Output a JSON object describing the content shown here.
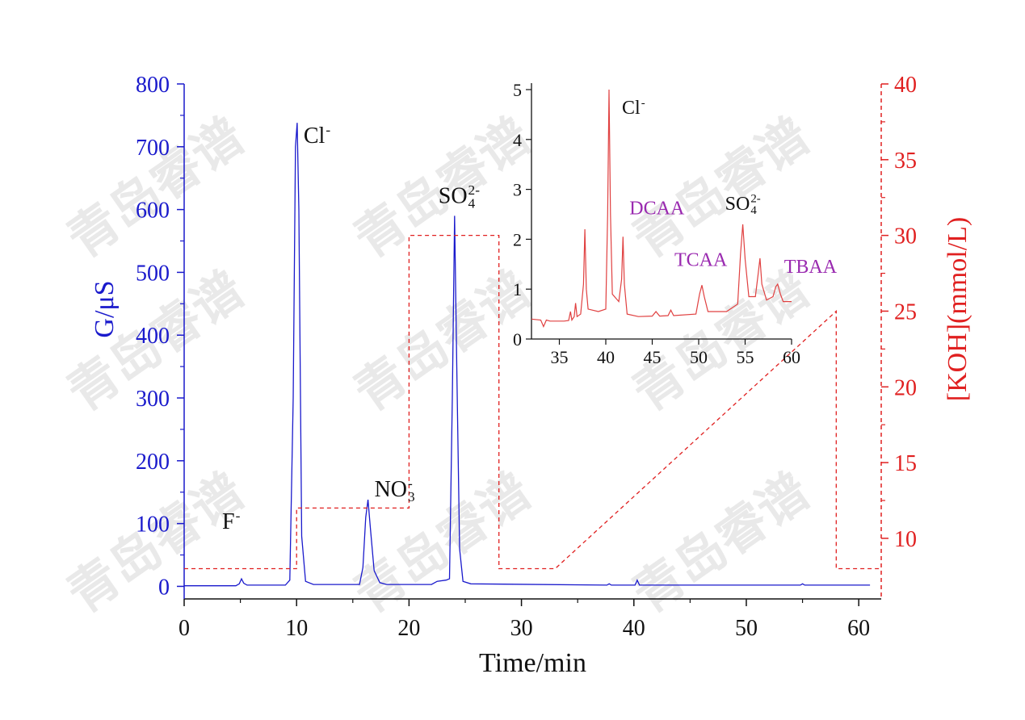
{
  "chart_data": [
    {
      "type": "line",
      "xlabel": "Time/min",
      "ylabel_left": "G/μS",
      "ylabel_right": "[KOH](mmol/L)",
      "xlim": [
        0,
        62
      ],
      "ylim_left": [
        -20,
        800
      ],
      "ylim_right": [
        6,
        40
      ],
      "x_ticks": [
        0,
        10,
        20,
        30,
        40,
        50,
        60
      ],
      "y_left_ticks": [
        0,
        100,
        200,
        300,
        400,
        500,
        600,
        700,
        800
      ],
      "y_right_ticks": [
        10,
        15,
        20,
        25,
        30,
        35,
        40
      ],
      "colors": {
        "conductivity": "#1a1acc",
        "koh": "#e02020",
        "inset": "#e04040",
        "inset_label": "#9a2ab0"
      },
      "series": [
        {
          "axis": "left",
          "style": "solid",
          "points": [
            [
              0,
              1
            ],
            [
              4.6,
              1
            ],
            [
              4.9,
              4
            ],
            [
              5.1,
              12
            ],
            [
              5.3,
              5
            ],
            [
              5.6,
              2
            ],
            [
              9,
              2
            ],
            [
              9.4,
              10
            ],
            [
              9.7,
              300
            ],
            [
              9.9,
              700
            ],
            [
              10.05,
              738
            ],
            [
              10.2,
              600
            ],
            [
              10.45,
              80
            ],
            [
              10.8,
              8
            ],
            [
              11.5,
              3
            ],
            [
              15.6,
              3
            ],
            [
              15.9,
              30
            ],
            [
              16.15,
              110
            ],
            [
              16.35,
              138
            ],
            [
              16.55,
              95
            ],
            [
              16.9,
              25
            ],
            [
              17.4,
              6
            ],
            [
              18,
              3
            ],
            [
              22,
              3
            ],
            [
              22.5,
              8
            ],
            [
              23.3,
              10
            ],
            [
              23.6,
              12
            ],
            [
              23.85,
              300
            ],
            [
              24.05,
              590
            ],
            [
              24.25,
              350
            ],
            [
              24.5,
              60
            ],
            [
              24.8,
              8
            ],
            [
              25.5,
              4
            ],
            [
              37.6,
              2
            ],
            [
              37.8,
              4
            ],
            [
              38,
              2
            ],
            [
              40.1,
              2
            ],
            [
              40.3,
              10
            ],
            [
              40.5,
              2
            ],
            [
              54.8,
              2
            ],
            [
              55,
              4
            ],
            [
              55.2,
              2
            ],
            [
              61,
              2
            ]
          ]
        },
        {
          "axis": "right",
          "style": "dashed",
          "points": [
            [
              0,
              8
            ],
            [
              10,
              8
            ],
            [
              10,
              12
            ],
            [
              20,
              12
            ],
            [
              20,
              30
            ],
            [
              28,
              30
            ],
            [
              28,
              8
            ],
            [
              33,
              8
            ],
            [
              58,
              25
            ],
            [
              58,
              8
            ],
            [
              62,
              8
            ]
          ]
        }
      ],
      "annotations": [
        {
          "text": "F",
          "sup": "-",
          "sub": "",
          "x": 5.1,
          "y": 12
        },
        {
          "text": "Cl",
          "sup": "-",
          "sub": "",
          "x": 10.05,
          "y": 738
        },
        {
          "text": "NO",
          "sup": "-",
          "sub": "3",
          "x": 16.35,
          "y": 138
        },
        {
          "text": "SO",
          "sup": "2-",
          "sub": "4",
          "x": 24.05,
          "y": 590
        }
      ]
    },
    {
      "type": "line",
      "title": "",
      "xlim": [
        32,
        60
      ],
      "ylim": [
        0,
        5
      ],
      "x_ticks": [
        35,
        40,
        45,
        50,
        55,
        60
      ],
      "y_ticks": [
        0,
        1,
        2,
        3,
        4,
        5
      ],
      "series": [
        {
          "points": [
            [
              32,
              0.4
            ],
            [
              33,
              0.38
            ],
            [
              33.3,
              0.25
            ],
            [
              33.6,
              0.38
            ],
            [
              34,
              0.36
            ],
            [
              35.5,
              0.36
            ],
            [
              36,
              0.37
            ],
            [
              36.2,
              0.55
            ],
            [
              36.35,
              0.38
            ],
            [
              36.6,
              0.45
            ],
            [
              36.75,
              0.72
            ],
            [
              36.9,
              0.45
            ],
            [
              37.3,
              0.5
            ],
            [
              37.6,
              1.1
            ],
            [
              37.75,
              2.2
            ],
            [
              37.9,
              1.0
            ],
            [
              38.1,
              0.6
            ],
            [
              39.2,
              0.55
            ],
            [
              40,
              0.6
            ],
            [
              40.2,
              2.5
            ],
            [
              40.35,
              5.0
            ],
            [
              40.5,
              2.5
            ],
            [
              40.7,
              0.9
            ],
            [
              41.4,
              0.75
            ],
            [
              41.7,
              1.2
            ],
            [
              41.85,
              2.05
            ],
            [
              42,
              1.1
            ],
            [
              42.3,
              0.5
            ],
            [
              43.5,
              0.45
            ],
            [
              45,
              0.46
            ],
            [
              45.4,
              0.55
            ],
            [
              45.8,
              0.46
            ],
            [
              46.7,
              0.47
            ],
            [
              47,
              0.58
            ],
            [
              47.3,
              0.47
            ],
            [
              49.7,
              0.5
            ],
            [
              50.1,
              0.9
            ],
            [
              50.35,
              1.08
            ],
            [
              50.6,
              0.85
            ],
            [
              51,
              0.55
            ],
            [
              53,
              0.55
            ],
            [
              54.2,
              0.7
            ],
            [
              54.5,
              1.7
            ],
            [
              54.75,
              2.3
            ],
            [
              55,
              1.6
            ],
            [
              55.4,
              0.85
            ],
            [
              56.1,
              0.85
            ],
            [
              56.4,
              1.3
            ],
            [
              56.6,
              1.62
            ],
            [
              56.8,
              1.1
            ],
            [
              57.3,
              0.78
            ],
            [
              58,
              0.85
            ],
            [
              58.3,
              1.05
            ],
            [
              58.5,
              1.1
            ],
            [
              58.8,
              0.9
            ],
            [
              59.1,
              0.75
            ],
            [
              60,
              0.75
            ]
          ]
        }
      ],
      "annotations": [
        {
          "text": "Cl",
          "sup": "-",
          "sub": "",
          "color": "black",
          "x": 40.35,
          "y": 5.0
        },
        {
          "text": "DCAA",
          "sup": "",
          "sub": "",
          "color": "purple",
          "x": 41.85,
          "y": 2.05
        },
        {
          "text": "TCAA",
          "sup": "",
          "sub": "",
          "color": "purple",
          "x": 50.35,
          "y": 1.08
        },
        {
          "text": "SO",
          "sup": "2-",
          "sub": "4",
          "color": "black",
          "x": 54.75,
          "y": 2.3
        },
        {
          "text": "TBAA",
          "sup": "",
          "sub": "",
          "color": "purple",
          "x": 58.5,
          "y": 1.1
        }
      ]
    }
  ],
  "watermark": "青岛睿谱"
}
